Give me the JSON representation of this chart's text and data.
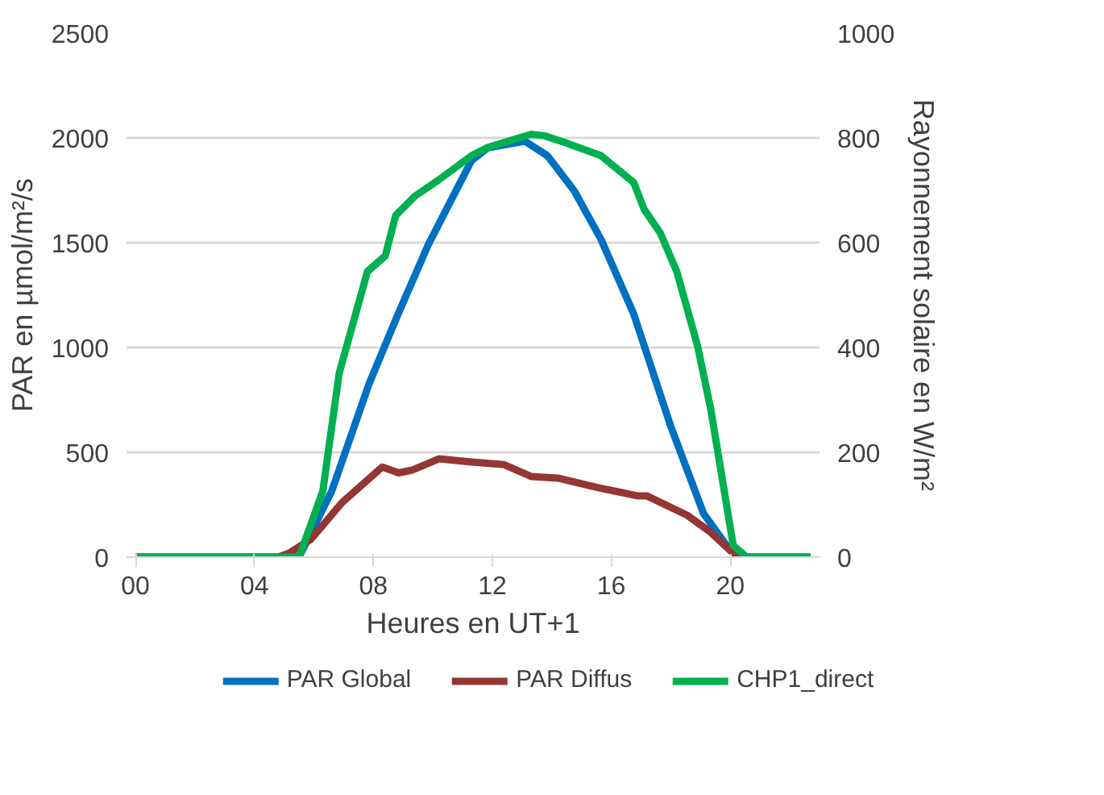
{
  "chart_data": {
    "type": "line",
    "xlabel": "Heures en UT+1",
    "ylabel": "PAR en µmol/m²/s",
    "y2label": "Rayonnement solaire en W/m²",
    "xlim": [
      -0.3,
      23
    ],
    "xticks": [
      {
        "value": 0,
        "label": "00"
      },
      {
        "value": 4,
        "label": "04"
      },
      {
        "value": 8,
        "label": "08"
      },
      {
        "value": 12,
        "label": "12"
      },
      {
        "value": 16,
        "label": "16"
      },
      {
        "value": 20,
        "label": "20"
      }
    ],
    "ylim": [
      0,
      2500
    ],
    "yticks": [
      0,
      500,
      1000,
      1500,
      2000,
      2500
    ],
    "y2lim": [
      0,
      1000
    ],
    "y2ticks": [
      0,
      200,
      400,
      600,
      800,
      1000
    ],
    "grid": "y",
    "legend": "bottom",
    "marker": "none",
    "line_style": "solid",
    "series": [
      {
        "name": "PAR Global",
        "color": "#0070c0",
        "x": [
          0,
          5.5,
          6.6,
          7.85,
          8.75,
          9.85,
          11.3,
          11.85,
          13.1,
          13.85,
          14.75,
          15.65,
          16.75,
          18.0,
          19.1,
          20.0,
          20.5,
          22.7
        ],
        "values": [
          0,
          0,
          315,
          825,
          1133,
          1492,
          1892,
          1953,
          1984,
          1915,
          1748,
          1517,
          1161,
          623,
          208,
          31,
          0,
          0
        ]
      },
      {
        "name": "PAR Diffus",
        "color": "#943634",
        "x": [
          0,
          4.8,
          5.15,
          5.9,
          6.95,
          8.3,
          8.85,
          9.3,
          10.2,
          11.3,
          12.4,
          13.3,
          14.2,
          15.5,
          16.9,
          17.2,
          18.55,
          19.3,
          20.1,
          20.5,
          22.7
        ],
        "values": [
          0,
          0,
          18,
          85,
          261,
          430,
          402,
          415,
          469,
          454,
          441,
          385,
          377,
          333,
          292,
          292,
          200,
          123,
          18,
          0,
          0
        ]
      },
      {
        "name": "CHP1_direct",
        "color": "#00b050",
        "axis": "y2",
        "x": [
          0,
          5.5,
          6.3,
          6.85,
          7.8,
          8.4,
          8.75,
          9.4,
          10.2,
          11.3,
          11.85,
          13.3,
          13.75,
          14.4,
          15.65,
          16.75,
          17.1,
          17.65,
          18.2,
          18.9,
          19.35,
          20.1,
          20.55,
          22.7
        ],
        "values": [
          0,
          0,
          126,
          351,
          545,
          575,
          652,
          689,
          720,
          766,
          782,
          807,
          804,
          792,
          766,
          715,
          664,
          618,
          545,
          403,
          280,
          22,
          0,
          0
        ]
      }
    ]
  }
}
